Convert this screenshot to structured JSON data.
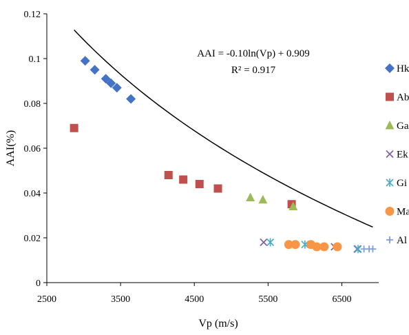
{
  "chart_data": {
    "type": "scatter",
    "xlabel": "Vp (m/s)",
    "ylabel": "AAI(%)",
    "xlim": [
      2500,
      7000
    ],
    "ylim": [
      0,
      0.12
    ],
    "xticks": [
      2500,
      3500,
      4500,
      5500,
      6500
    ],
    "yticks": [
      0,
      0.02,
      0.04,
      0.06,
      0.08,
      0.1,
      0.12
    ],
    "xtick_labels": [
      "2500",
      "3500",
      "4500",
      "5500",
      "6500"
    ],
    "ytick_labels": [
      "0",
      "0.02",
      "0.04",
      "0.06",
      "0.08",
      "0.1",
      "0.12"
    ],
    "grid": false,
    "legend_position": "right",
    "annotation": {
      "equation": "AAI = -0.10ln(Vp) + 0.909",
      "r_squared": "R² = 0.917"
    },
    "trendline": {
      "type": "logarithmic",
      "a": -0.1,
      "b": 0.909,
      "x_range": [
        2870,
        6920
      ],
      "color": "#000000"
    },
    "series": [
      {
        "name": "Hk",
        "marker": "diamond",
        "color": "#4472C4",
        "points": [
          [
            3020,
            0.099
          ],
          [
            3150,
            0.095
          ],
          [
            3300,
            0.091
          ],
          [
            3370,
            0.089
          ],
          [
            3450,
            0.087
          ],
          [
            3640,
            0.082
          ]
        ]
      },
      {
        "name": "Ab",
        "marker": "square",
        "color": "#C0504D",
        "points": [
          [
            2870,
            0.069
          ],
          [
            4150,
            0.048
          ],
          [
            4350,
            0.046
          ],
          [
            4570,
            0.044
          ],
          [
            4820,
            0.042
          ],
          [
            5820,
            0.035
          ]
        ]
      },
      {
        "name": "Ga",
        "marker": "triangle",
        "color": "#9BBB59",
        "points": [
          [
            5260,
            0.038
          ],
          [
            5430,
            0.037
          ],
          [
            5840,
            0.034
          ]
        ]
      },
      {
        "name": "Ek",
        "marker": "x",
        "color": "#8064A2",
        "points": [
          [
            5440,
            0.018
          ],
          [
            6400,
            0.016
          ],
          [
            6710,
            0.015
          ]
        ]
      },
      {
        "name": "Gi",
        "marker": "asterisk",
        "color": "#4BACC6",
        "points": [
          [
            5530,
            0.018
          ],
          [
            6000,
            0.017
          ],
          [
            6720,
            0.015
          ]
        ]
      },
      {
        "name": "Ma",
        "marker": "circle",
        "color": "#F79646",
        "points": [
          [
            5780,
            0.017
          ],
          [
            5870,
            0.017
          ],
          [
            6080,
            0.017
          ],
          [
            6160,
            0.016
          ],
          [
            6260,
            0.016
          ],
          [
            6440,
            0.016
          ]
        ]
      },
      {
        "name": "Al",
        "marker": "plus",
        "color": "#7F9FD6",
        "points": [
          [
            6800,
            0.015
          ],
          [
            6870,
            0.015
          ],
          [
            6920,
            0.015
          ]
        ]
      }
    ]
  }
}
